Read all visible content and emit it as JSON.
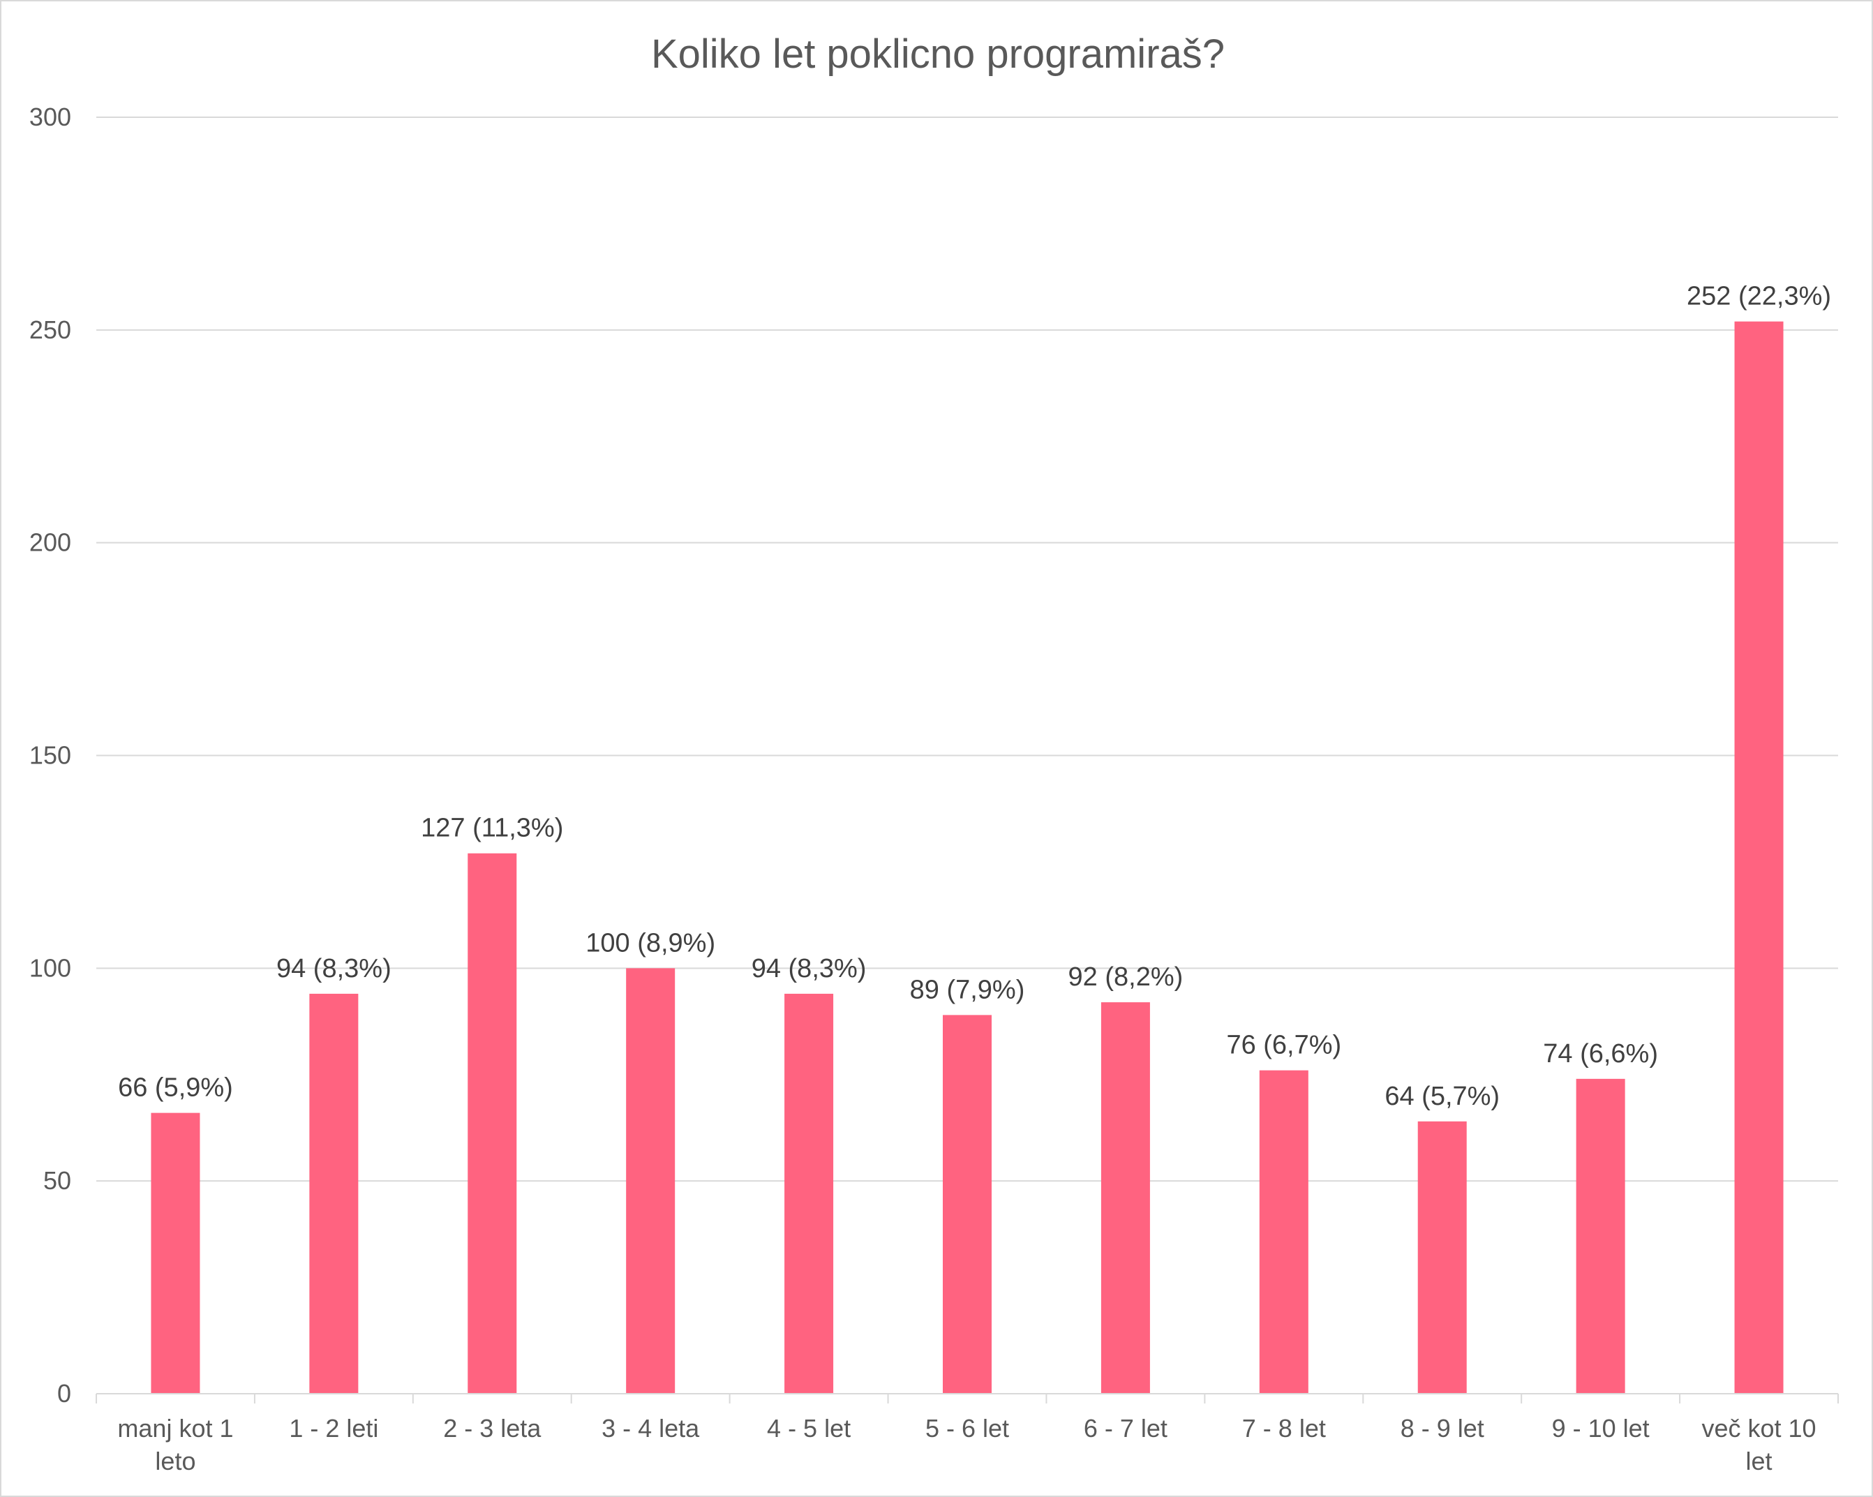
{
  "chart_data": {
    "type": "bar",
    "title": "Koliko let poklicno programiraš?",
    "xlabel": "",
    "ylabel": "",
    "ylim": [
      0,
      300
    ],
    "yticks": [
      0,
      50,
      100,
      150,
      200,
      250,
      300
    ],
    "grid": true,
    "legend": "none",
    "bar_color": "#ff6380",
    "categories": [
      [
        "manj kot 1",
        "leto"
      ],
      [
        "1 - 2 leti"
      ],
      [
        "2 - 3 leta"
      ],
      [
        "3 - 4 leta"
      ],
      [
        "4 - 5 let"
      ],
      [
        "5 - 6 let"
      ],
      [
        "6 - 7 let"
      ],
      [
        "7 - 8 let"
      ],
      [
        "8 - 9 let"
      ],
      [
        "9 - 10 let"
      ],
      [
        "več kot 10",
        "let"
      ]
    ],
    "values": [
      66,
      94,
      127,
      100,
      94,
      89,
      92,
      76,
      64,
      74,
      252
    ],
    "data_labels": [
      "66 (5,9%)",
      "94 (8,3%)",
      "127 (11,3%)",
      "100 (8,9%)",
      "94 (8,3%)",
      "89 (7,9%)",
      "92 (8,2%)",
      "76 (6,7%)",
      "64 (5,7%)",
      "74 (6,6%)",
      "252 (22,3%)"
    ]
  }
}
